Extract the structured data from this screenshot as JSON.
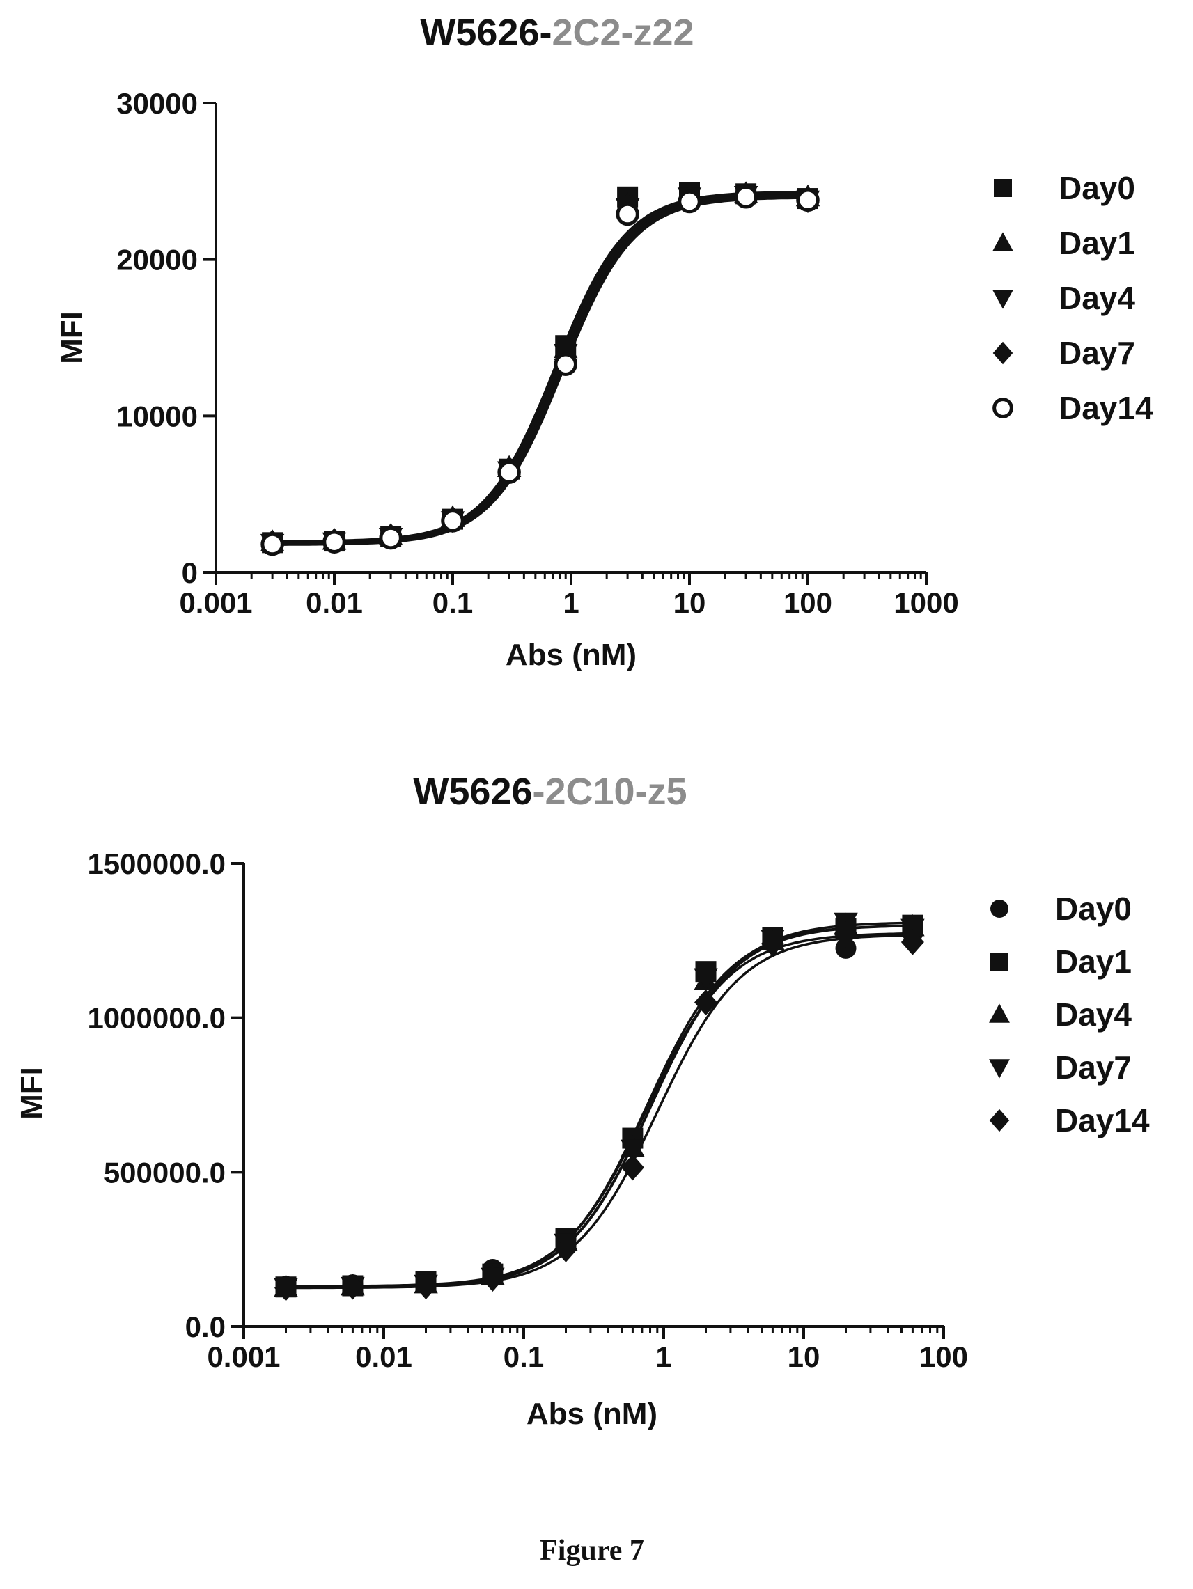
{
  "figure": {
    "caption": "Figure 7"
  },
  "chart_data": [
    {
      "type": "scatter",
      "title": "W5626-",
      "title_highlight": "2C2-z22",
      "xlabel": "Abs (nM)",
      "ylabel": "MFI",
      "xscale": "log",
      "xlim": [
        0.001,
        1000
      ],
      "ylim": [
        0,
        30000
      ],
      "xticks": [
        0.001,
        0.01,
        0.1,
        1,
        10,
        100,
        1000
      ],
      "xtick_labels": [
        "0.001",
        "0.01",
        "0.1",
        "1",
        "10",
        "100",
        "1000"
      ],
      "yticks": [
        0,
        10000,
        20000,
        30000
      ],
      "ytick_labels": [
        "0",
        "10000",
        "20000",
        "30000"
      ],
      "legend_position": "right",
      "x": [
        0.003,
        0.01,
        0.03,
        0.1,
        0.3,
        0.9,
        3,
        10,
        30,
        100
      ],
      "series": [
        {
          "name": "Day0",
          "marker": "square",
          "values": [
            1900,
            2000,
            2300,
            3400,
            6600,
            14500,
            24000,
            24300,
            24200,
            23900
          ]
        },
        {
          "name": "Day1",
          "marker": "triangle-up",
          "values": [
            1950,
            2050,
            2350,
            3500,
            6700,
            14300,
            23500,
            24100,
            24200,
            24000
          ]
        },
        {
          "name": "Day4",
          "marker": "triangle-down",
          "values": [
            1850,
            1950,
            2250,
            3300,
            6500,
            14000,
            23300,
            24000,
            24100,
            23800
          ]
        },
        {
          "name": "Day7",
          "marker": "diamond",
          "values": [
            1900,
            2000,
            2300,
            3400,
            6600,
            13600,
            23000,
            23900,
            24100,
            23800
          ]
        },
        {
          "name": "Day14",
          "marker": "circle-open",
          "values": [
            1800,
            1950,
            2200,
            3300,
            6400,
            13300,
            22900,
            23700,
            24000,
            23800
          ]
        }
      ]
    },
    {
      "type": "scatter",
      "title": "W5626",
      "title_highlight": "-2C10-z5",
      "xlabel": "Abs (nM)",
      "ylabel": "MFI",
      "xscale": "log",
      "xlim": [
        0.001,
        100
      ],
      "ylim": [
        0,
        1500000
      ],
      "xticks": [
        0.001,
        0.01,
        0.1,
        1,
        10,
        100
      ],
      "xtick_labels": [
        "0.001",
        "0.01",
        "0.1",
        "1",
        "10",
        "100"
      ],
      "yticks": [
        0,
        500000,
        1000000,
        1500000
      ],
      "ytick_labels": [
        "0.0",
        "500000.0",
        "1000000.0",
        "1500000.0"
      ],
      "legend_position": "right",
      "x": [
        0.002,
        0.006,
        0.02,
        0.06,
        0.2,
        0.6,
        2,
        6,
        20,
        60
      ],
      "series": [
        {
          "name": "Day0",
          "marker": "circle",
          "values": [
            130000,
            135000,
            140000,
            185000,
            280000,
            600000,
            1140000,
            1255000,
            1225000,
            1275000
          ]
        },
        {
          "name": "Day1",
          "marker": "square",
          "values": [
            128000,
            132000,
            145000,
            170000,
            285000,
            610000,
            1150000,
            1260000,
            1290000,
            1300000
          ]
        },
        {
          "name": "Day4",
          "marker": "triangle-up",
          "values": [
            127000,
            131000,
            138000,
            165000,
            275000,
            580000,
            1120000,
            1250000,
            1300000,
            1295000
          ]
        },
        {
          "name": "Day7",
          "marker": "triangle-down",
          "values": [
            126000,
            130000,
            137000,
            160000,
            270000,
            575000,
            1130000,
            1255000,
            1310000,
            1290000
          ]
        },
        {
          "name": "Day14",
          "marker": "diamond",
          "values": [
            125000,
            129000,
            130000,
            155000,
            250000,
            515000,
            1050000,
            1240000,
            1270000,
            1245000
          ]
        }
      ]
    }
  ]
}
